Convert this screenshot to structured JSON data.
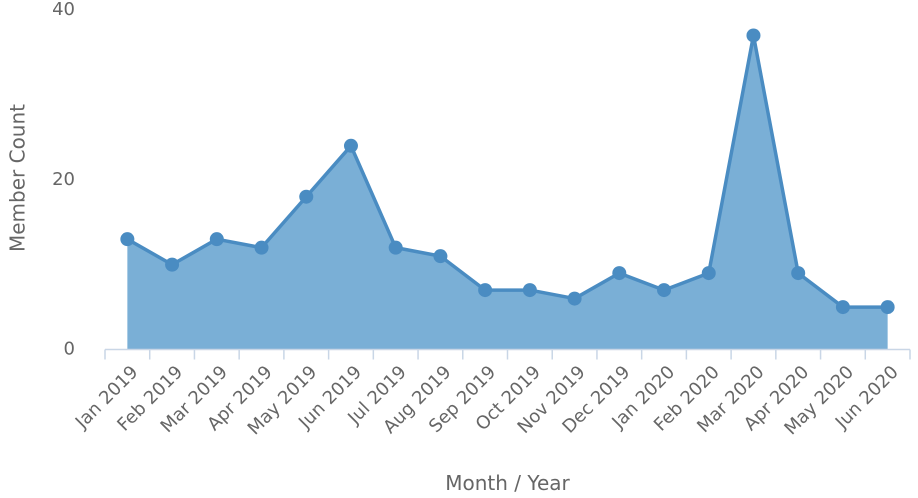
{
  "chart_data": {
    "type": "area",
    "title": "",
    "xlabel": "Month / Year",
    "ylabel": "Member Count",
    "categories": [
      "Jan 2019",
      "Feb 2019",
      "Mar 2019",
      "Apr 2019",
      "May 2019",
      "Jun 2019",
      "Jul 2019",
      "Aug 2019",
      "Sep 2019",
      "Oct 2019",
      "Nov 2019",
      "Dec 2019",
      "Jan 2020",
      "Feb 2020",
      "Mar 2020",
      "Apr 2020",
      "May 2020",
      "Jun 2020"
    ],
    "series": [
      {
        "values": [
          13,
          10,
          13,
          12,
          18,
          24,
          12,
          11,
          7,
          7,
          6,
          9,
          7,
          9,
          37,
          9,
          5,
          5
        ]
      }
    ],
    "ylim": [
      0,
      40
    ],
    "yticks": [
      0,
      20,
      40
    ],
    "grid": false,
    "colors": {
      "line": "#4a8cc2",
      "fill": "#7aafd6",
      "axis": "#c9d6e6",
      "text": "#666666"
    }
  }
}
